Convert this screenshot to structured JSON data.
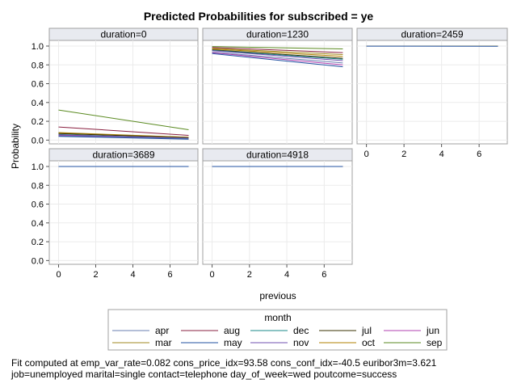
{
  "title": "Predicted Probabilities for subscribed = ye",
  "footnote": {
    "line1": "Fit computed at emp_var_rate=0.082 cons_price_idx=93.58 cons_conf_idx=-40.5 euribor3m=3.621",
    "line2": "job=unemployed marital=single contact=telephone day_of_week=wed poutcome=success"
  },
  "chart_data": {
    "type": "line",
    "title": "Predicted Probabilities for subscribed = ye",
    "xlabel": "previous",
    "ylabel": "Probability",
    "xlim": [
      -0.5,
      7.5
    ],
    "ylim": [
      -0.04,
      1.06
    ],
    "x_ticks": [
      0,
      2,
      4,
      6
    ],
    "y_ticks": [
      0.0,
      0.2,
      0.4,
      0.6,
      0.8,
      1.0
    ],
    "y_tick_labels": [
      "0.0",
      "0.2",
      "0.4",
      "0.6",
      "0.8",
      "1.0"
    ],
    "grid": true,
    "legend_title": "month",
    "legend_position": "bottom",
    "x": [
      0,
      7
    ],
    "colors": {
      "apr": "#6a7fb0",
      "aug": "#8a2040",
      "dec": "#1a8a8a",
      "jul": "#3a3000",
      "jun": "#b040b0",
      "mar": "#a08820",
      "may": "#2050a0",
      "nov": "#7050b0",
      "oct": "#b08000",
      "sep": "#5a8a20"
    },
    "legend_order": [
      "apr",
      "aug",
      "dec",
      "jul",
      "jun",
      "mar",
      "may",
      "nov",
      "oct",
      "sep"
    ],
    "panels": [
      {
        "label": "duration=0",
        "series": [
          {
            "name": "sep",
            "values": [
              0.32,
              0.11
            ]
          },
          {
            "name": "aug",
            "values": [
              0.14,
              0.05
            ]
          },
          {
            "name": "mar",
            "values": [
              0.08,
              0.03
            ]
          },
          {
            "name": "oct",
            "values": [
              0.075,
              0.03
            ]
          },
          {
            "name": "jul",
            "values": [
              0.07,
              0.025
            ]
          },
          {
            "name": "dec",
            "values": [
              0.06,
              0.02
            ]
          },
          {
            "name": "nov",
            "values": [
              0.055,
              0.02
            ]
          },
          {
            "name": "jun",
            "values": [
              0.05,
              0.015
            ]
          },
          {
            "name": "apr",
            "values": [
              0.045,
              0.015
            ]
          },
          {
            "name": "may",
            "values": [
              0.04,
              0.01
            ]
          }
        ]
      },
      {
        "label": "duration=1230",
        "series": [
          {
            "name": "sep",
            "values": [
              0.995,
              0.97
            ]
          },
          {
            "name": "aug",
            "values": [
              0.985,
              0.93
            ]
          },
          {
            "name": "mar",
            "values": [
              0.975,
              0.91
            ]
          },
          {
            "name": "oct",
            "values": [
              0.97,
              0.89
            ]
          },
          {
            "name": "jul",
            "values": [
              0.96,
              0.87
            ]
          },
          {
            "name": "dec",
            "values": [
              0.955,
              0.86
            ]
          },
          {
            "name": "nov",
            "values": [
              0.95,
              0.845
            ]
          },
          {
            "name": "apr",
            "values": [
              0.935,
              0.82
            ]
          },
          {
            "name": "jun",
            "values": [
              0.93,
              0.8
            ]
          },
          {
            "name": "may",
            "values": [
              0.92,
              0.78
            ]
          }
        ]
      },
      {
        "label": "duration=2459",
        "series": [
          {
            "name": "sep",
            "values": [
              1.0,
              1.0
            ]
          },
          {
            "name": "aug",
            "values": [
              1.0,
              1.0
            ]
          },
          {
            "name": "mar",
            "values": [
              1.0,
              1.0
            ]
          },
          {
            "name": "may",
            "values": [
              0.999,
              0.998
            ]
          }
        ]
      },
      {
        "label": "duration=3689",
        "series": [
          {
            "name": "sep",
            "values": [
              1.0,
              1.0
            ]
          },
          {
            "name": "aug",
            "values": [
              1.0,
              1.0
            ]
          },
          {
            "name": "may",
            "values": [
              1.0,
              1.0
            ]
          }
        ]
      },
      {
        "label": "duration=4918",
        "series": [
          {
            "name": "sep",
            "values": [
              1.0,
              1.0
            ]
          },
          {
            "name": "aug",
            "values": [
              1.0,
              1.0
            ]
          },
          {
            "name": "may",
            "values": [
              1.0,
              1.0
            ]
          }
        ]
      }
    ]
  }
}
